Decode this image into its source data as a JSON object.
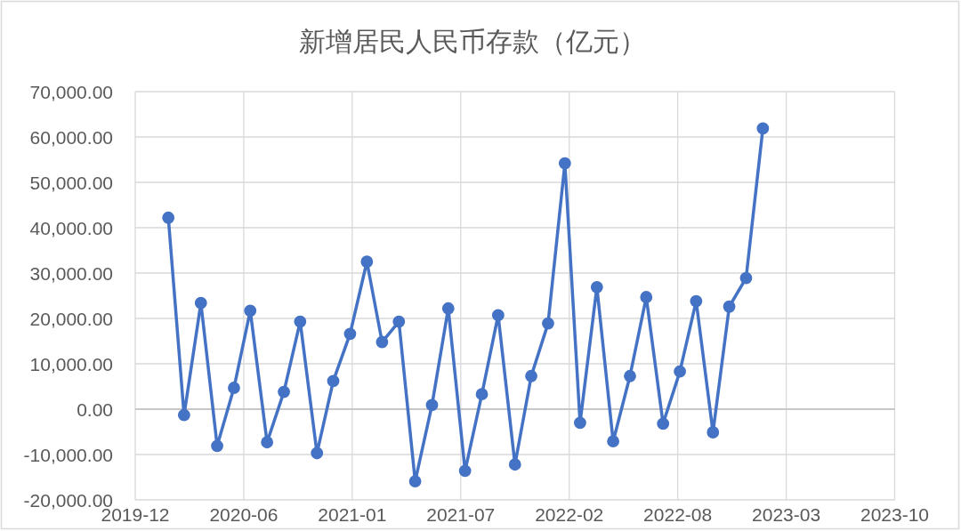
{
  "chart_data": {
    "type": "line",
    "title": "新增居民人民币存款（亿元）",
    "x": [
      "2020-01-31",
      "2020-02-29",
      "2020-03-31",
      "2020-04-30",
      "2020-05-31",
      "2020-06-30",
      "2020-07-31",
      "2020-08-31",
      "2020-09-30",
      "2020-10-31",
      "2020-11-30",
      "2020-12-31",
      "2021-01-31",
      "2021-02-28",
      "2021-03-31",
      "2021-04-30",
      "2021-05-31",
      "2021-06-30",
      "2021-07-31",
      "2021-08-31",
      "2021-09-30",
      "2021-10-31",
      "2021-11-30",
      "2021-12-31",
      "2022-01-31",
      "2022-02-28",
      "2022-03-31",
      "2022-04-30",
      "2022-05-31",
      "2022-06-30",
      "2022-07-31",
      "2022-08-31",
      "2022-09-30",
      "2022-10-31",
      "2022-11-30",
      "2022-12-31",
      "2023-01-31"
    ],
    "series": [
      {
        "color": "#4472c4",
        "values": [
          42200,
          -1300,
          23400,
          -8100,
          4700,
          21700,
          -7300,
          3800,
          19300,
          -9700,
          6200,
          16600,
          32500,
          14800,
          19300,
          -15900,
          900,
          22200,
          -13600,
          3300,
          20700,
          -12200,
          7300,
          18900,
          54200,
          -3000,
          26900,
          -7100,
          7300,
          24700,
          -3200,
          8300,
          23800,
          -5100,
          22600,
          28900,
          61900
        ]
      }
    ],
    "xlim": [
      "2019-12-01",
      "2023-10-01"
    ],
    "xticks": [
      {
        "value": "2019-12-01",
        "label": "2019-12"
      },
      {
        "value": "2020-06-18",
        "label": "2020-06"
      },
      {
        "value": "2021-01-04",
        "label": "2021-01"
      },
      {
        "value": "2021-07-23",
        "label": "2021-07"
      },
      {
        "value": "2022-02-08",
        "label": "2022-02"
      },
      {
        "value": "2022-08-27",
        "label": "2022-08"
      },
      {
        "value": "2023-03-15",
        "label": "2023-03"
      },
      {
        "value": "2023-10-01",
        "label": "2023-10"
      }
    ],
    "ylim": [
      -20000,
      70000
    ],
    "yticks": [
      {
        "value": -20000,
        "label": "-20,000.00"
      },
      {
        "value": -10000,
        "label": "-10,000.00"
      },
      {
        "value": 0,
        "label": "0.00"
      },
      {
        "value": 10000,
        "label": "10,000.00"
      },
      {
        "value": 20000,
        "label": "20,000.00"
      },
      {
        "value": 30000,
        "label": "30,000.00"
      },
      {
        "value": 40000,
        "label": "40,000.00"
      },
      {
        "value": 50000,
        "label": "50,000.00"
      },
      {
        "value": 60000,
        "label": "60,000.00"
      },
      {
        "value": 70000,
        "label": "70,000.00"
      }
    ],
    "grid": true,
    "marker": "circle",
    "line_style": "solid"
  }
}
